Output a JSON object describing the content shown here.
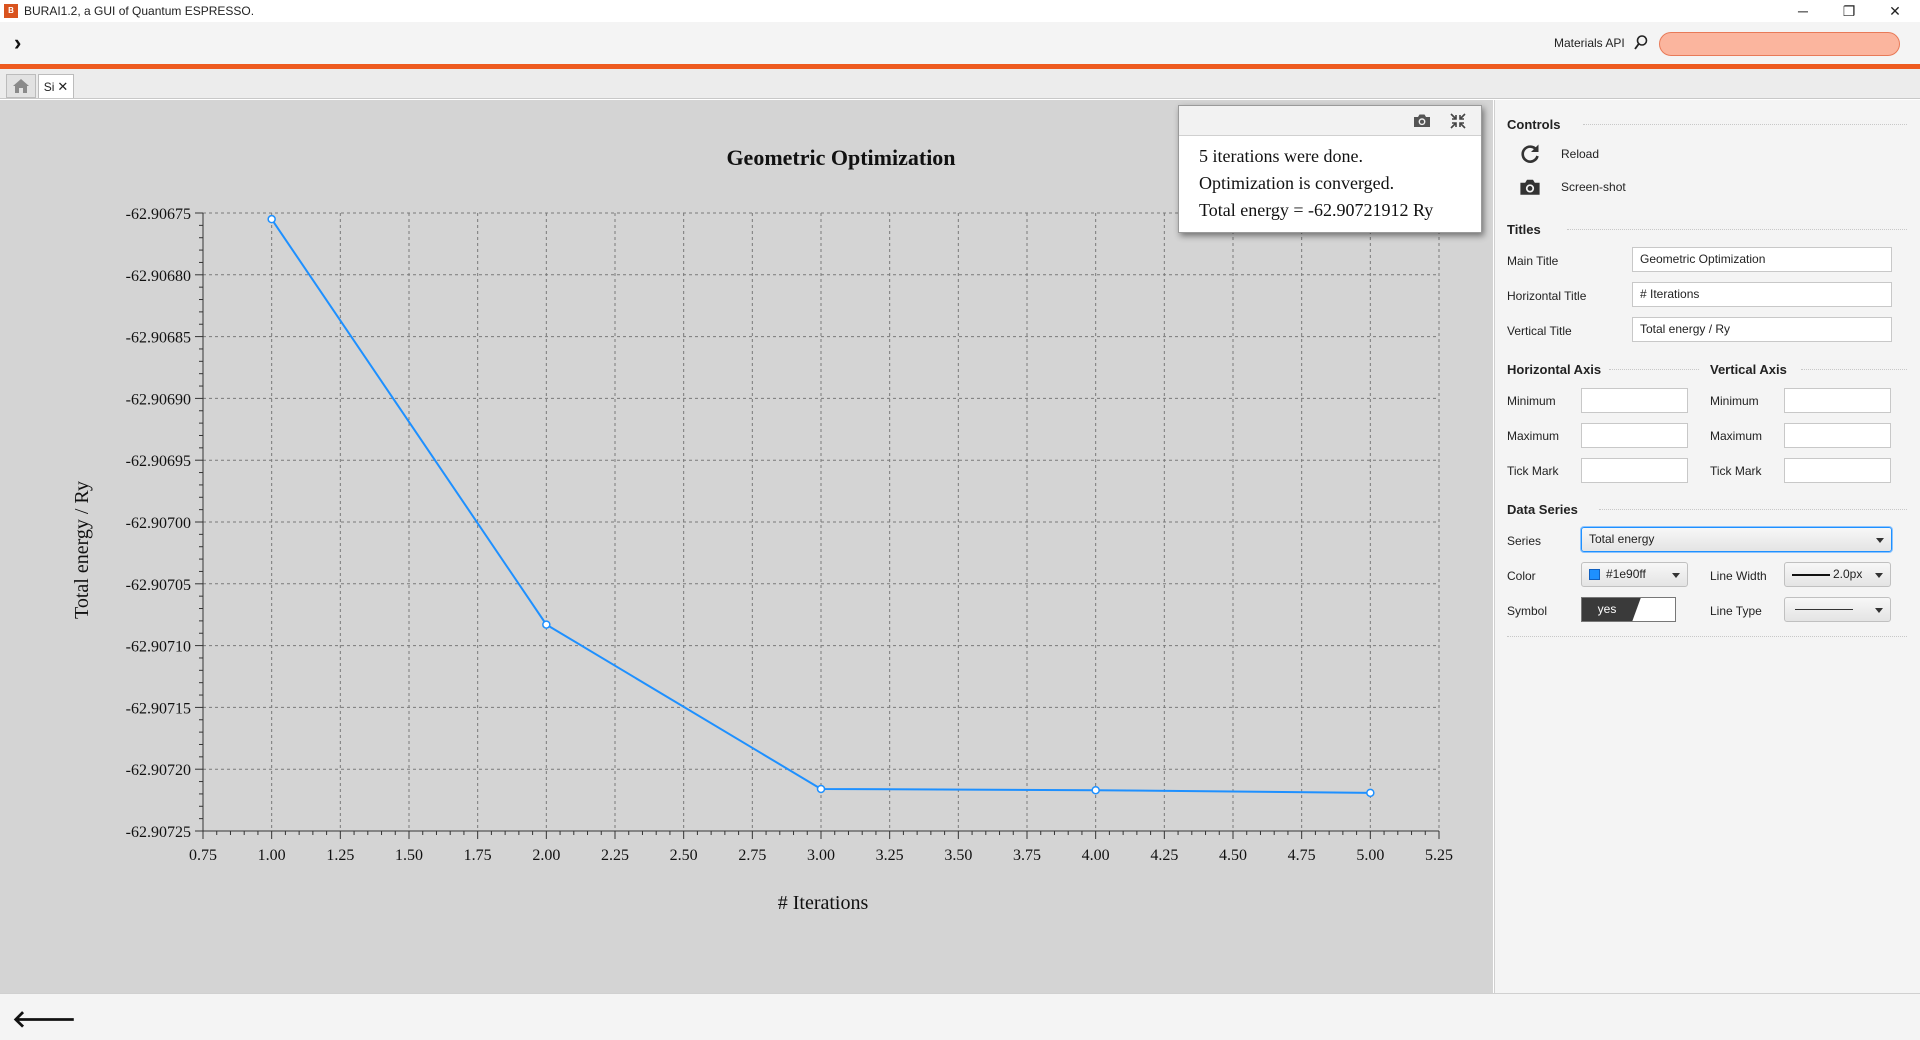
{
  "window": {
    "title": "BURAI1.2, a GUI of Quantum ESPRESSO.",
    "logo_text": "B",
    "minimize": "─",
    "restore": "❐",
    "close": "✕"
  },
  "toolbar": {
    "expand_icon": "chevron-right-icon",
    "materials_api_label": "Materials API",
    "search_icon": "search-icon",
    "search_value": "",
    "accent_color": "#ee5a1f"
  },
  "tabs": [
    {
      "label": "",
      "icon": "home-icon"
    },
    {
      "label": "Si",
      "close": "✕"
    }
  ],
  "info_popup": {
    "lines": [
      "5 iterations were done.",
      "Optimization is converged.",
      "Total energy = -62.90721912 Ry"
    ]
  },
  "chart_data": {
    "type": "line",
    "title": "Geometric Optimization",
    "xlabel": "# Iterations",
    "ylabel": "Total energy / Ry",
    "xlim": [
      0.75,
      5.25
    ],
    "ylim": [
      -62.90725,
      -62.90675
    ],
    "xticks": [
      "0.75",
      "1.00",
      "1.25",
      "1.50",
      "1.75",
      "2.00",
      "2.25",
      "2.50",
      "2.75",
      "3.00",
      "3.25",
      "3.50",
      "3.75",
      "4.00",
      "4.25",
      "4.50",
      "4.75",
      "5.00",
      "5.25"
    ],
    "yticks": [
      "-62.90675",
      "-62.90680",
      "-62.90685",
      "-62.90690",
      "-62.90695",
      "-62.90700",
      "-62.90705",
      "-62.90710",
      "-62.90715",
      "-62.90720",
      "-62.90725"
    ],
    "grid": true,
    "series": [
      {
        "color": "#1e90ff",
        "line_width": 2.0,
        "symbol": true,
        "x": [
          1,
          2,
          3,
          4,
          5
        ],
        "y": [
          -62.906755,
          -62.907083,
          -62.907216,
          -62.907217,
          -62.90721912
        ]
      }
    ]
  },
  "panel": {
    "controls": {
      "heading": "Controls",
      "reload_label": "Reload",
      "screenshot_label": "Screen-shot"
    },
    "titles": {
      "heading": "Titles",
      "main_title_label": "Main Title",
      "main_title_value": "Geometric Optimization",
      "horizontal_title_label": "Horizontal Title",
      "horizontal_title_value": "# Iterations",
      "vertical_title_label": "Vertical Title",
      "vertical_title_value": "Total energy / Ry"
    },
    "horizontal_axis": {
      "heading": "Horizontal Axis",
      "minimum_label": "Minimum",
      "minimum_value": "",
      "maximum_label": "Maximum",
      "maximum_value": "",
      "tick_label": "Tick Mark",
      "tick_value": ""
    },
    "vertical_axis": {
      "heading": "Vertical Axis",
      "minimum_label": "Minimum",
      "minimum_value": "",
      "maximum_label": "Maximum",
      "maximum_value": "",
      "tick_label": "Tick Mark",
      "tick_value": ""
    },
    "data_series": {
      "heading": "Data Series",
      "series_label": "Series",
      "series_value": "Total energy",
      "color_label": "Color",
      "color_value": "#1e90ff",
      "line_width_label": "Line Width",
      "line_width_value": "2.0px",
      "symbol_label": "Symbol",
      "symbol_value": "yes",
      "line_type_label": "Line Type"
    }
  },
  "bottombar": {
    "back_icon": "arrow-left-icon"
  }
}
